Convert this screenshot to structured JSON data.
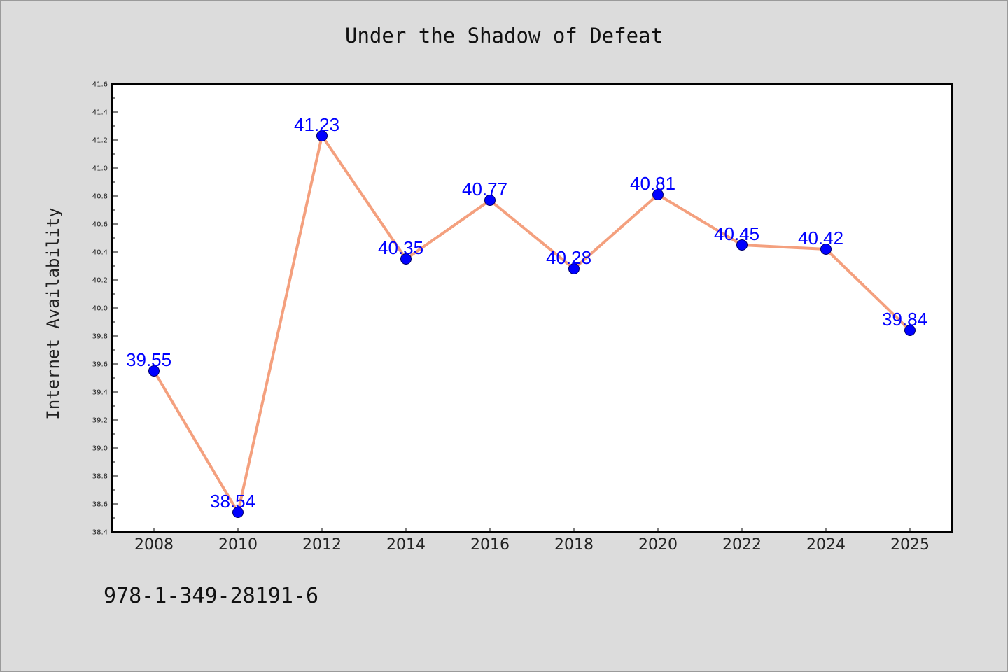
{
  "chart_data": {
    "type": "line",
    "title": "Under the Shadow of Defeat",
    "xlabel": "",
    "ylabel": "Internet Availability",
    "categories": [
      "2008",
      "2010",
      "2012",
      "2014",
      "2016",
      "2018",
      "2020",
      "2022",
      "2024",
      "2025"
    ],
    "series": [
      {
        "values": [
          39.55,
          38.54,
          41.23,
          40.35,
          40.77,
          40.28,
          40.81,
          40.45,
          40.42,
          39.84
        ],
        "labels": [
          "39.55",
          "38.54",
          "41.23",
          "40.35",
          "40.77",
          "40.28",
          "40.81",
          "40.45",
          "40.42",
          "39.84"
        ]
      }
    ],
    "ylim": [
      38.4,
      41.6
    ],
    "yticks": [
      "38.4",
      "38.6",
      "38.8",
      "39.0",
      "39.2",
      "39.4",
      "39.6",
      "39.8",
      "40.0",
      "40.2",
      "40.4",
      "40.6",
      "40.8",
      "41.0",
      "41.2",
      "41.4",
      "41.6"
    ],
    "grid": false,
    "legend": "none",
    "colors": {
      "line": "#f4a07e",
      "marker": "#0000ff",
      "data_label": "#0000ff",
      "plot_background": "#ffffff",
      "page_background": "#dcdcdc"
    }
  },
  "footer": {
    "isbn": "978-1-349-28191-6"
  }
}
